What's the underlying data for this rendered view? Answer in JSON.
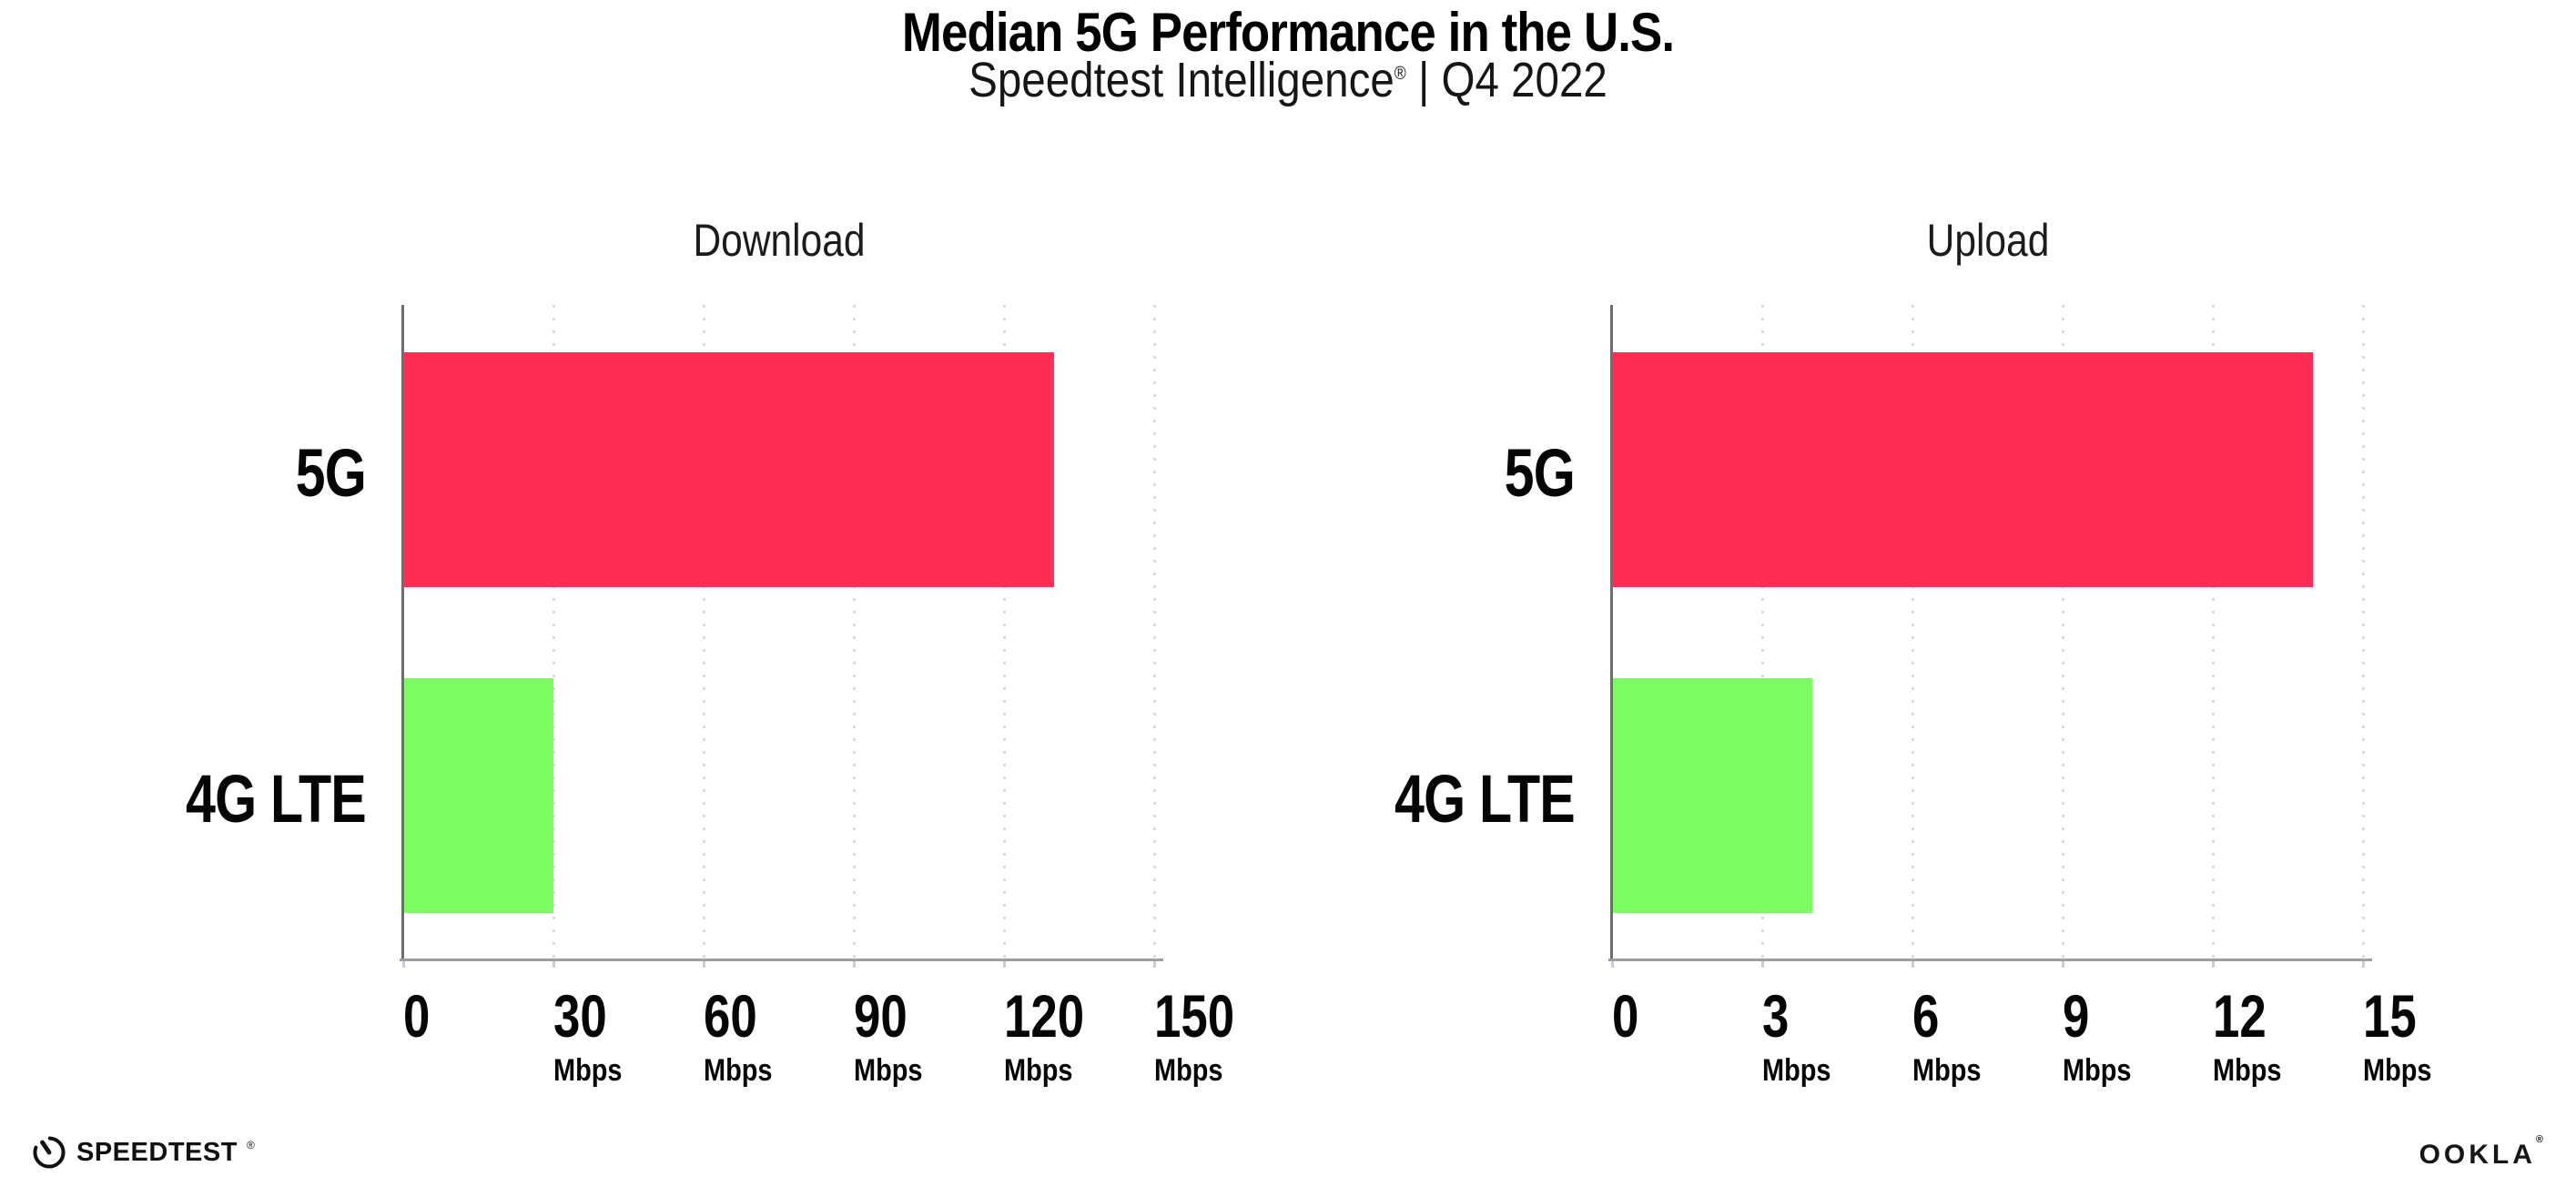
{
  "header": {
    "title": "Median 5G Performance in the U.S.",
    "subtitle_brand": "Speedtest Intelligence",
    "subtitle_reg": "®",
    "subtitle_rest": " | Q4 2022"
  },
  "chart_data": [
    {
      "type": "bar",
      "orientation": "horizontal",
      "title": "Download",
      "categories": [
        "5G",
        "4G LTE"
      ],
      "values": [
        130,
        30
      ],
      "unit": "Mbps",
      "xlim": [
        0,
        150
      ],
      "xticks": [
        0,
        30,
        60,
        90,
        120,
        150
      ],
      "grid": "vertical-dotted",
      "legend": "none"
    },
    {
      "type": "bar",
      "orientation": "horizontal",
      "title": "Upload",
      "categories": [
        "5G",
        "4G LTE"
      ],
      "values": [
        14,
        4
      ],
      "unit": "Mbps",
      "xlim": [
        0,
        15
      ],
      "xticks": [
        0,
        3,
        6,
        9,
        12,
        15
      ],
      "grid": "vertical-dotted",
      "legend": "none"
    }
  ],
  "colors": {
    "bar_5g": "#FF2D55",
    "bar_4g_lte": "#7DFC63",
    "grid_dot": "#DCDAE6",
    "axis_vline": "#6E6E6E",
    "axis_hline": "#9E9E9E",
    "title_text": "#000000",
    "subtitle_text": "#161616"
  },
  "footer": {
    "speedtest_label": "SPEEDTEST",
    "speedtest_reg": "®",
    "ookla_label": "OOKLA",
    "ookla_reg": "®"
  }
}
